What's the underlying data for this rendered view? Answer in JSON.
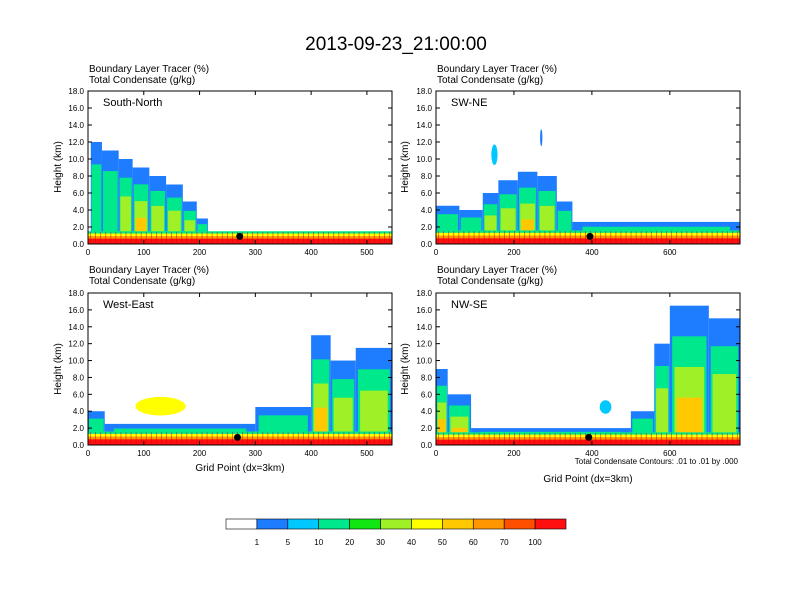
{
  "main_title": "2013-09-23_21:00:00",
  "chart_data": [
    {
      "type": "heatmap",
      "panel_label": "South-North",
      "subtitle_lines": [
        "Boundary Layer Tracer   (%)",
        "Total Condensate   (g/kg)"
      ],
      "ylabel": "Height (km)",
      "xlabel": "",
      "x_ticks": [
        "0",
        "100",
        "200",
        "300",
        "400",
        "500"
      ],
      "y_ticks": [
        "0.0",
        "2.0",
        "4.0",
        "6.0",
        "8.0",
        "10.0",
        "12.0",
        "14.0",
        "16.0",
        "18.0"
      ],
      "xlim": [
        0,
        545
      ],
      "ylim": [
        0,
        18
      ],
      "marker_x": 272,
      "surface_layer_top_km": 1.5,
      "columns": [
        {
          "x0": 5,
          "x1": 25,
          "top": 12.0,
          "core": 10
        },
        {
          "x0": 25,
          "x1": 55,
          "top": 11.0,
          "core": 20
        },
        {
          "x0": 55,
          "x1": 80,
          "top": 10.0,
          "core": 40
        },
        {
          "x0": 80,
          "x1": 110,
          "top": 9.0,
          "core": 50
        },
        {
          "x0": 110,
          "x1": 140,
          "top": 8.0,
          "core": 40
        },
        {
          "x0": 140,
          "x1": 170,
          "top": 7.0,
          "core": 40
        },
        {
          "x0": 170,
          "x1": 195,
          "top": 5.0,
          "core": 30
        },
        {
          "x0": 195,
          "x1": 215,
          "top": 3.0,
          "core": 20
        }
      ],
      "blobs": [],
      "contour_note": ""
    },
    {
      "type": "heatmap",
      "panel_label": "SW-NE",
      "subtitle_lines": [
        "Boundary Layer Tracer   (%)",
        "Total Condensate   (g/kg)"
      ],
      "ylabel": "Height (km)",
      "xlabel": "",
      "x_ticks": [
        "0",
        "200",
        "400",
        "600"
      ],
      "y_ticks": [
        "0.0",
        "2.0",
        "4.0",
        "6.0",
        "8.0",
        "10.0",
        "12.0",
        "14.0",
        "16.0",
        "18.0"
      ],
      "xlim": [
        0,
        780
      ],
      "ylim": [
        0,
        18
      ],
      "marker_x": 395,
      "surface_layer_top_km": 1.6,
      "columns": [
        {
          "x0": 0,
          "x1": 60,
          "top": 4.5,
          "core": 10
        },
        {
          "x0": 60,
          "x1": 120,
          "top": 4.0,
          "core": 20
        },
        {
          "x0": 120,
          "x1": 160,
          "top": 6.0,
          "core": 30
        },
        {
          "x0": 160,
          "x1": 210,
          "top": 7.5,
          "core": 40
        },
        {
          "x0": 210,
          "x1": 260,
          "top": 8.5,
          "core": 50
        },
        {
          "x0": 260,
          "x1": 310,
          "top": 8.0,
          "core": 40
        },
        {
          "x0": 310,
          "x1": 350,
          "top": 5.0,
          "core": 20
        },
        {
          "x0": 350,
          "x1": 780,
          "top": 2.6,
          "core": 10
        }
      ],
      "blobs": [
        {
          "x": 150,
          "y": 10.5,
          "rx": 8,
          "ry": 1.2,
          "v": 5
        },
        {
          "x": 270,
          "y": 12.5,
          "rx": 3,
          "ry": 1.0,
          "v": 1
        }
      ],
      "contour_note": ""
    },
    {
      "type": "heatmap",
      "panel_label": "West-East",
      "subtitle_lines": [
        "Boundary Layer Tracer   (%)",
        "Total Condensate   (g/kg)"
      ],
      "ylabel": "Height (km)",
      "xlabel": "Grid Point (dx=3km)",
      "x_ticks": [
        "0",
        "100",
        "200",
        "300",
        "400",
        "500"
      ],
      "y_ticks": [
        "0.0",
        "2.0",
        "4.0",
        "6.0",
        "8.0",
        "10.0",
        "12.0",
        "14.0",
        "16.0",
        "18.0"
      ],
      "xlim": [
        0,
        545
      ],
      "ylim": [
        0,
        18
      ],
      "marker_x": 268,
      "surface_layer_top_km": 1.6,
      "columns": [
        {
          "x0": 0,
          "x1": 30,
          "top": 4.0,
          "core": 10
        },
        {
          "x0": 30,
          "x1": 300,
          "top": 2.5,
          "core": 10
        },
        {
          "x0": 300,
          "x1": 400,
          "top": 4.5,
          "core": 10
        },
        {
          "x0": 400,
          "x1": 435,
          "top": 13.0,
          "core": 50
        },
        {
          "x0": 435,
          "x1": 480,
          "top": 10.0,
          "core": 30
        },
        {
          "x0": 480,
          "x1": 545,
          "top": 11.5,
          "core": 40
        }
      ],
      "blobs": [
        {
          "x": 130,
          "y": 4.6,
          "rx": 45,
          "ry": 1.1,
          "v": 40
        }
      ],
      "contour_note": ""
    },
    {
      "type": "heatmap",
      "panel_label": "NW-SE",
      "subtitle_lines": [
        "Boundary Layer Tracer   (%)",
        "Total Condensate   (g/kg)"
      ],
      "ylabel": "Height (km)",
      "xlabel": "Grid Point (dx=3km)",
      "x_ticks": [
        "0",
        "200",
        "400",
        "600"
      ],
      "y_ticks": [
        "0.0",
        "2.0",
        "4.0",
        "6.0",
        "8.0",
        "10.0",
        "12.0",
        "14.0",
        "16.0",
        "18.0"
      ],
      "xlim": [
        0,
        780
      ],
      "ylim": [
        0,
        18
      ],
      "marker_x": 392,
      "surface_layer_top_km": 1.5,
      "columns": [
        {
          "x0": 0,
          "x1": 30,
          "top": 9.0,
          "core": 60
        },
        {
          "x0": 30,
          "x1": 90,
          "top": 6.0,
          "core": 80
        },
        {
          "x0": 90,
          "x1": 500,
          "top": 2.0,
          "core": 10
        },
        {
          "x0": 500,
          "x1": 560,
          "top": 4.0,
          "core": 10
        },
        {
          "x0": 560,
          "x1": 600,
          "top": 12.0,
          "core": 30
        },
        {
          "x0": 600,
          "x1": 700,
          "top": 16.5,
          "core": 50
        },
        {
          "x0": 700,
          "x1": 780,
          "top": 15.0,
          "core": 40
        }
      ],
      "blobs": [
        {
          "x": 435,
          "y": 4.5,
          "rx": 15,
          "ry": 0.8,
          "v": 5
        }
      ],
      "contour_note": "Total Condensate Contours: .01 to .01 by .000"
    }
  ],
  "colorbar": {
    "labels": [
      "1",
      "5",
      "10",
      "20",
      "30",
      "40",
      "50",
      "60",
      "70",
      "100"
    ],
    "colors": [
      "#ffffff",
      "#1e7cff",
      "#00c8ff",
      "#00e88c",
      "#12e612",
      "#a0f028",
      "#ffff00",
      "#ffc800",
      "#ff9600",
      "#ff5000",
      "#ff0f0f"
    ]
  }
}
